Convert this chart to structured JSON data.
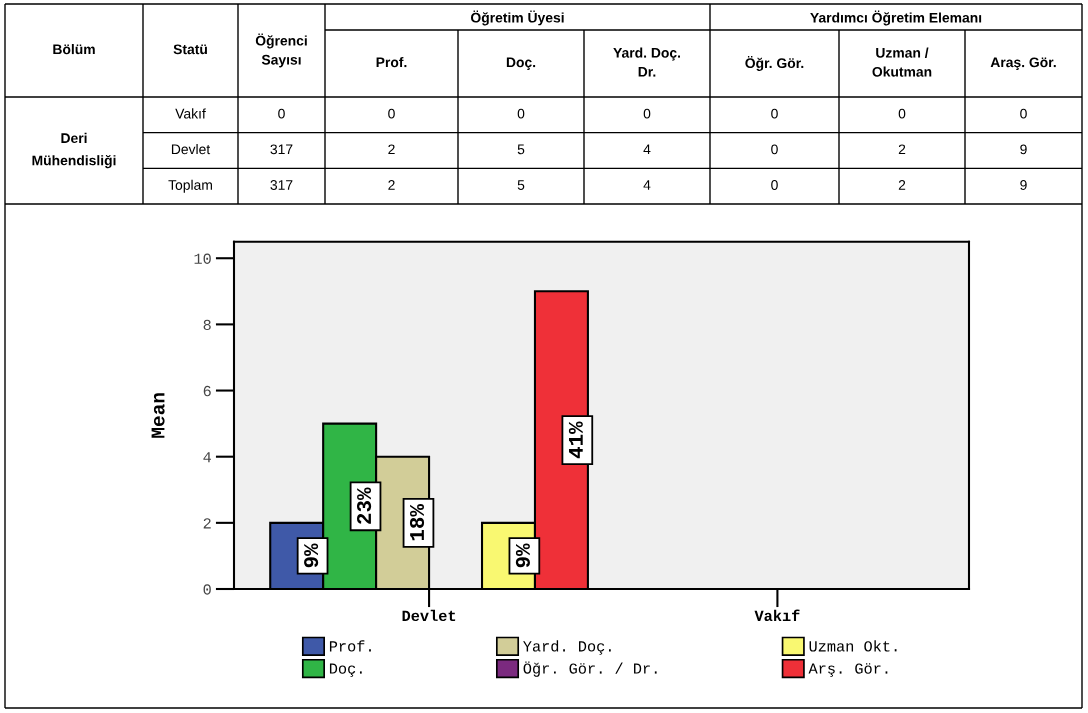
{
  "chart_data": [
    {
      "type": "other",
      "categories": [
        "Bölüm",
        "Statü",
        "Öğrenci Sayısı",
        "Prof.",
        "Doç.",
        "Yard. Doç. Dr.",
        "Öğr. Gör.",
        "Uzman / Okutman",
        "Araş. Gör."
      ],
      "annotations": [
        "Öğretim Üyesi",
        "Yardımcı Öğretim Elemanı"
      ],
      "y_categories": [
        "Deri Mühendisliği"
      ],
      "cells": [
        [
          "Vakıf",
          "0",
          "0",
          "0",
          "0",
          "0",
          "0",
          "0"
        ],
        [
          "Devlet",
          "317",
          "2",
          "5",
          "4",
          "0",
          "2",
          "9"
        ],
        [
          "Toplam",
          "317",
          "2",
          "5",
          "4",
          "0",
          "2",
          "9"
        ]
      ]
    },
    {
      "type": "bar",
      "ylabel": "Mean",
      "categories": [
        "Devlet",
        "Vakıf"
      ],
      "ylim": [
        0,
        10.5
      ],
      "yticks": [
        0,
        2,
        4,
        6,
        8,
        10
      ],
      "grid": false,
      "legend": "bottom",
      "annotations": [
        "9%",
        "23%",
        "18%",
        "9%",
        "41%"
      ],
      "series": [
        {
          "name": "Prof.",
          "color": "#3f59a8",
          "values": [
            2,
            0
          ]
        },
        {
          "name": "Doç.",
          "color": "#30b546",
          "values": [
            5,
            0
          ]
        },
        {
          "name": "Yard. Doç.",
          "color": "#d2cd98",
          "values": [
            4,
            0
          ]
        },
        {
          "name": "Öğr. Gör. / Dr.",
          "color": "#7b2a7f",
          "values": [
            0,
            0
          ]
        },
        {
          "name": "Uzman Okt.",
          "color": "#f9f871",
          "values": [
            2,
            0
          ]
        },
        {
          "name": "Arş. Gör.",
          "color": "#ef3038",
          "values": [
            9,
            0
          ]
        }
      ]
    }
  ]
}
